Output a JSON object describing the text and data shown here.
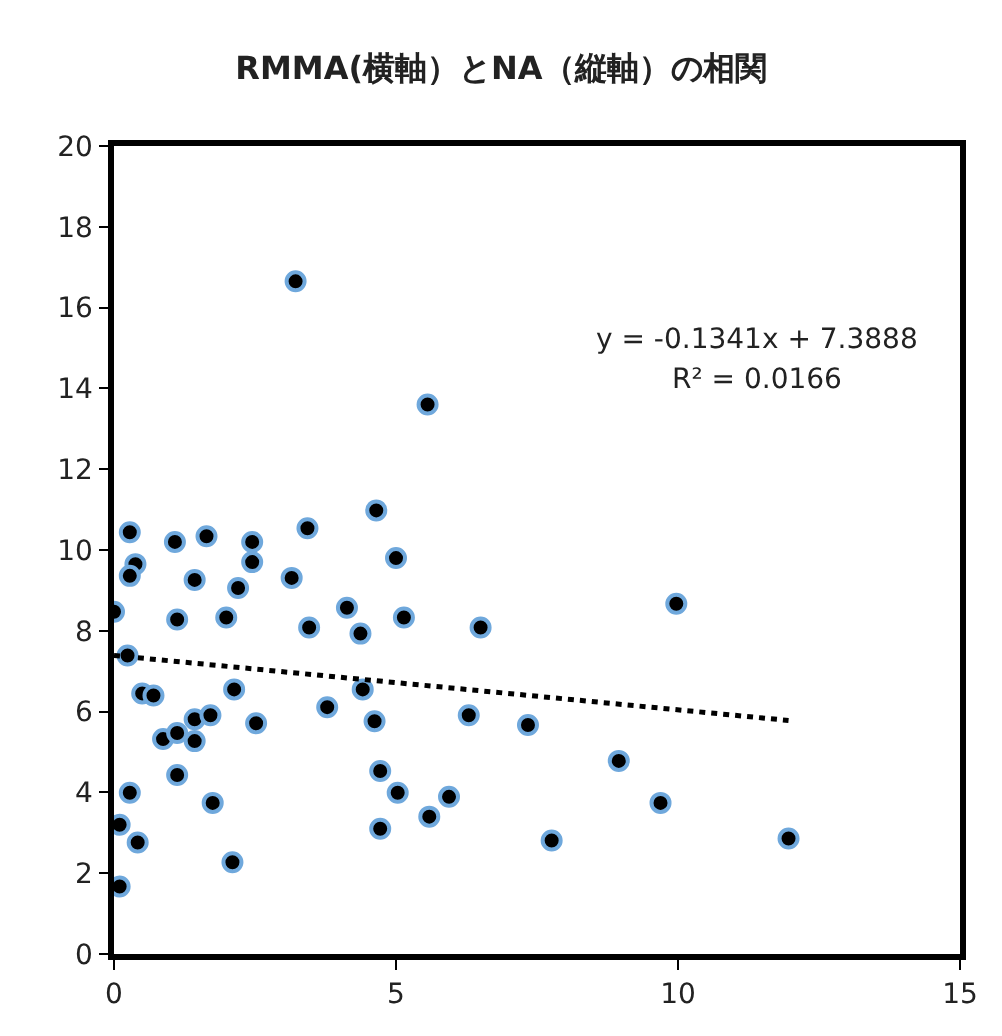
{
  "chart_data": {
    "type": "scatter",
    "title": "RMMA(横軸）とNA（縦軸）の相関",
    "x": [
      0,
      0.28,
      0.38,
      0.28,
      0.24,
      0.5,
      0.7,
      0.28,
      0.1,
      0.42,
      0.1,
      0.87,
      1.12,
      1.08,
      1.12,
      1.12,
      1.43,
      1.43,
      1.43,
      1.64,
      1.71,
      1.75,
      1.99,
      2.2,
      2.13,
      2.1,
      2.45,
      2.45,
      2.52,
      3.15,
      3.43,
      3.46,
      3.78,
      4.13,
      4.37,
      4.41,
      4.65,
      4.62,
      4.72,
      4.72,
      5.0,
      5.14,
      5.03,
      5.59,
      5.94,
      6.29,
      6.5,
      7.34,
      9.97,
      8.95,
      9.69,
      7.76,
      11.96,
      3.22,
      5.56
    ],
    "series": [
      {
        "color": "#000000",
        "marker": "circle",
        "values": [
          8.47,
          10.44,
          9.65,
          9.36,
          7.39,
          6.45,
          6.4,
          3.99,
          3.2,
          2.76,
          1.67,
          5.32,
          5.47,
          10.2,
          8.28,
          4.43,
          9.26,
          5.81,
          5.27,
          10.34,
          5.91,
          3.74,
          8.33,
          9.06,
          6.55,
          2.27,
          10.2,
          9.7,
          5.71,
          9.31,
          10.54,
          8.08,
          6.11,
          8.57,
          7.93,
          6.55,
          10.98,
          5.76,
          4.53,
          3.1,
          9.8,
          8.33,
          3.99,
          3.4,
          3.89,
          5.91,
          8.08,
          5.67,
          8.67,
          4.78,
          3.74,
          2.81,
          2.86,
          16.65,
          13.6
        ]
      },
      {
        "type": "line",
        "color": "#000000",
        "line_style": "dotted",
        "x": [
          0,
          11.96
        ],
        "values": [
          7.39,
          5.78
        ]
      }
    ],
    "annotations": [
      "y = -0.1341x + 7.3888",
      "R² = 0.0166"
    ],
    "xlim": [
      0,
      15
    ],
    "xticks": [
      0,
      5,
      10,
      15
    ],
    "ylim": [
      0,
      20
    ],
    "yticks": [
      0,
      2,
      4,
      6,
      8,
      10,
      12,
      14,
      16,
      18,
      20
    ]
  }
}
